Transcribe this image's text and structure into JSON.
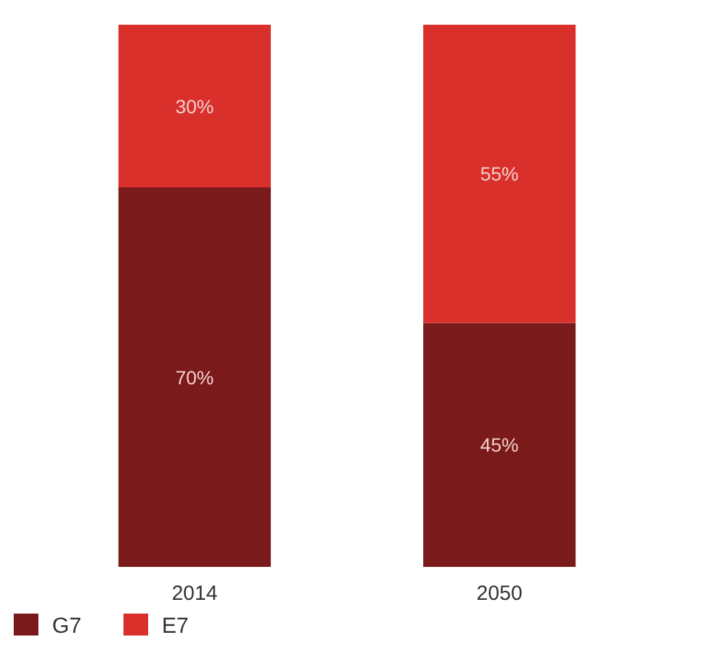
{
  "chart_data": {
    "type": "bar",
    "stacked": true,
    "categories": [
      "2014",
      "2050"
    ],
    "legend": "bottom left",
    "series": [
      {
        "name": "G7",
        "color": "#7b1a1a",
        "values": [
          70,
          45
        ],
        "value_labels": [
          "70%",
          "45%"
        ]
      },
      {
        "name": "E7",
        "color": "#d9302c",
        "values": [
          30,
          55
        ],
        "value_labels": [
          "30%",
          "55%"
        ]
      }
    ]
  }
}
